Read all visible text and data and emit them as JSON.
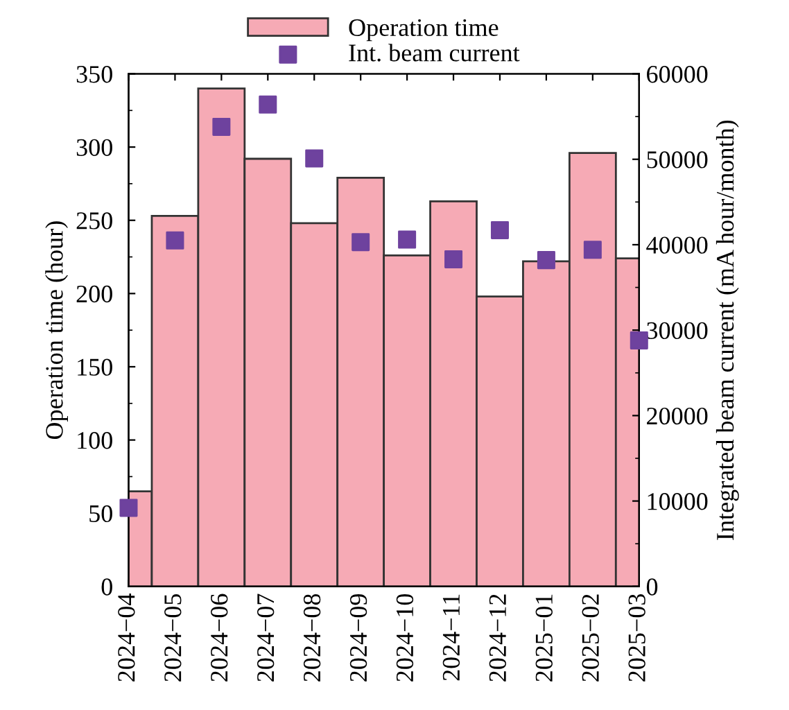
{
  "chart_data": {
    "type": "bar",
    "ylabel": "Operation time (hour)",
    "y2label": "Integrated beam current (mA hour/month)",
    "categories": [
      "2024−04",
      "2024−05",
      "2024−06",
      "2024−07",
      "2024−08",
      "2024−09",
      "2024−10",
      "2024−11",
      "2024−12",
      "2025−01",
      "2025−02",
      "2025−03"
    ],
    "series": [
      {
        "name": "Operation time",
        "color": "#f6aab5",
        "values": [
          65,
          253,
          340,
          292,
          248,
          279,
          226,
          263,
          198,
          222,
          296,
          224
        ]
      },
      {
        "name": "Int. beam current",
        "type": "scatter",
        "axis": "y2",
        "color": "#6e429e",
        "marker": "square",
        "values": [
          9200,
          40500,
          53800,
          56400,
          50100,
          40300,
          40600,
          38300,
          41700,
          38200,
          39400,
          28800
        ]
      }
    ],
    "ylim": [
      0,
      350
    ],
    "yticks": [
      0,
      50,
      100,
      150,
      200,
      250,
      300,
      350
    ],
    "y2lim": [
      0,
      60000
    ],
    "y2ticks": [
      0,
      10000,
      20000,
      30000,
      40000,
      50000,
      60000
    ],
    "legend": "top",
    "grid": false
  }
}
